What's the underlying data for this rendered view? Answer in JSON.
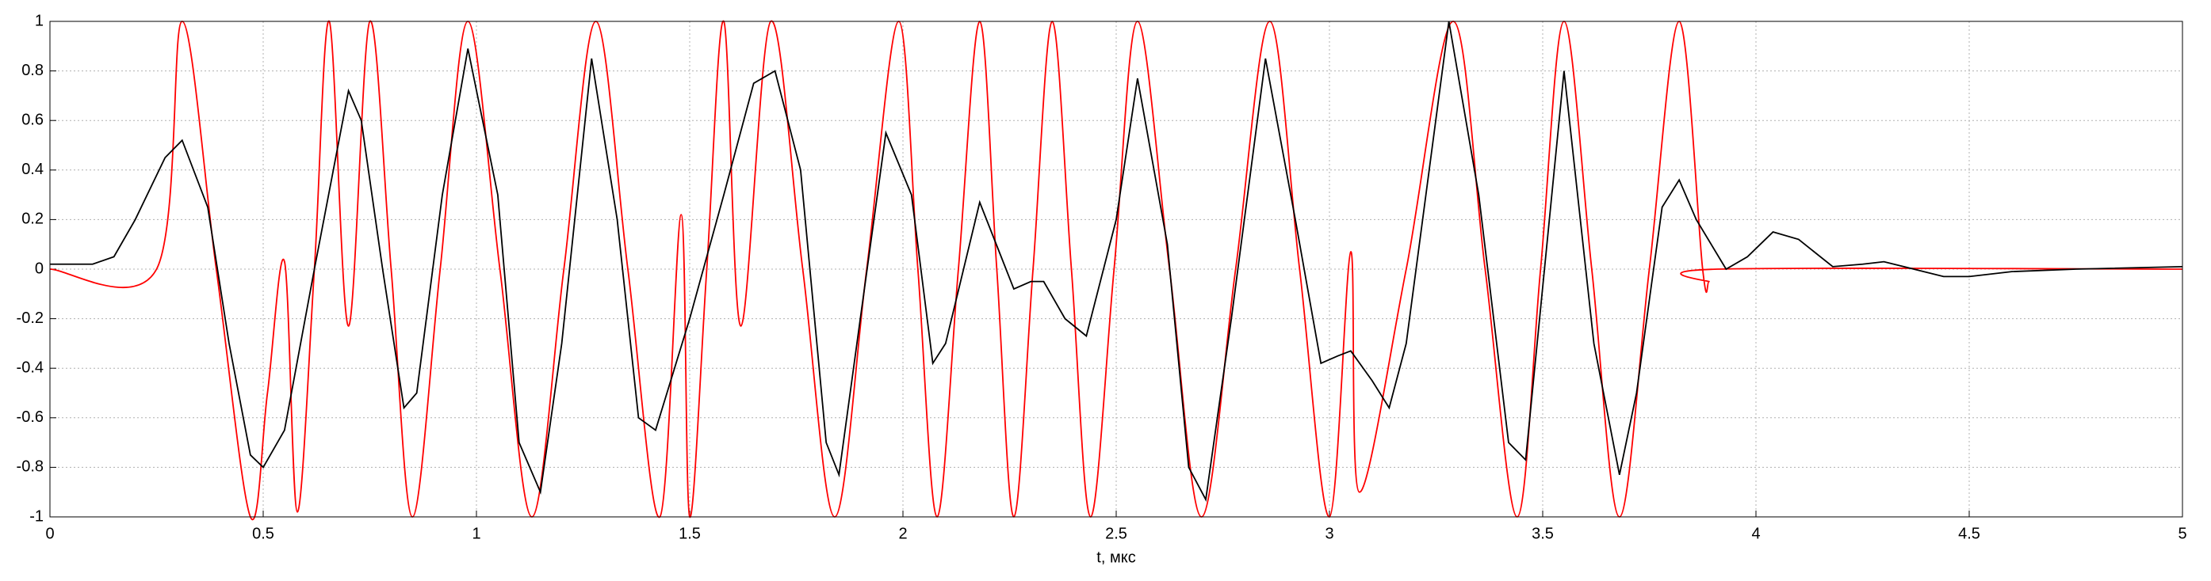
{
  "chart_data": {
    "type": "line",
    "xlabel": "t, мкс",
    "xlim": [
      0,
      5
    ],
    "ylim": [
      -1,
      1
    ],
    "xticks": [
      0,
      0.5,
      1,
      1.5,
      2,
      2.5,
      3,
      3.5,
      4,
      4.5,
      5
    ],
    "yticks": [
      -1,
      -0.8,
      -0.6,
      -0.4,
      -0.2,
      0,
      0.2,
      0.4,
      0.6,
      0.8,
      1
    ],
    "grid": true,
    "series": [
      {
        "color": "#ff0000",
        "smooth": true,
        "x": [
          0,
          0.25,
          0.31,
          0.39,
          0.47,
          0.51,
          0.55,
          0.58,
          0.62,
          0.655,
          0.7,
          0.75,
          0.8,
          0.85,
          0.915,
          0.98,
          1.055,
          1.13,
          1.205,
          1.28,
          1.355,
          1.43,
          1.48,
          1.5,
          1.54,
          1.58,
          1.62,
          1.69,
          1.765,
          1.84,
          1.915,
          1.99,
          2.035,
          2.08,
          2.13,
          2.18,
          2.22,
          2.26,
          2.305,
          2.35,
          2.395,
          2.44,
          2.495,
          2.55,
          2.625,
          2.7,
          2.78,
          2.86,
          2.93,
          3.0,
          3.05,
          3.07,
          3.18,
          3.29,
          3.365,
          3.44,
          3.495,
          3.55,
          3.615,
          3.68,
          3.75,
          3.82,
          3.875,
          3.89,
          3.91,
          5
        ],
        "values": [
          0,
          0,
          1,
          0,
          -1,
          -0.5,
          0.03,
          -0.98,
          0,
          1,
          -0.23,
          1,
          0,
          -1,
          0,
          1,
          0,
          -1,
          0,
          1,
          0,
          -1,
          0.22,
          -1,
          0,
          1,
          -0.23,
          1,
          0,
          -1,
          0,
          1,
          0,
          -1,
          0,
          1,
          0,
          -1,
          0,
          1,
          0,
          -1,
          0,
          1,
          0,
          -1,
          0,
          1,
          0,
          -1,
          0.07,
          -0.9,
          0,
          1,
          0,
          -1,
          0,
          1,
          0,
          -1,
          0,
          1,
          0,
          -0.05,
          0,
          0
        ]
      },
      {
        "color": "#000000",
        "smooth": false,
        "x": [
          0,
          0.1,
          0.15,
          0.2,
          0.27,
          0.31,
          0.37,
          0.42,
          0.47,
          0.5,
          0.55,
          0.62,
          0.7,
          0.73,
          0.78,
          0.83,
          0.86,
          0.92,
          0.98,
          1.05,
          1.1,
          1.15,
          1.2,
          1.27,
          1.33,
          1.38,
          1.42,
          1.5,
          1.58,
          1.65,
          1.7,
          1.76,
          1.82,
          1.85,
          1.9,
          1.96,
          2.02,
          2.07,
          2.1,
          2.18,
          2.26,
          2.3,
          2.33,
          2.38,
          2.43,
          2.5,
          2.55,
          2.62,
          2.67,
          2.71,
          2.77,
          2.85,
          2.92,
          2.98,
          3.02,
          3.05,
          3.1,
          3.14,
          3.18,
          3.28,
          3.35,
          3.42,
          3.46,
          3.55,
          3.62,
          3.68,
          3.72,
          3.78,
          3.82,
          3.86,
          3.93,
          3.98,
          4.04,
          4.1,
          4.18,
          4.25,
          4.3,
          4.37,
          4.44,
          4.5,
          4.6,
          4.75,
          5
        ],
        "values": [
          0.02,
          0.02,
          0.05,
          0.2,
          0.45,
          0.52,
          0.25,
          -0.3,
          -0.75,
          -0.8,
          -0.65,
          0,
          0.72,
          0.6,
          0,
          -0.56,
          -0.5,
          0.3,
          0.89,
          0.3,
          -0.7,
          -0.9,
          -0.3,
          0.85,
          0.2,
          -0.6,
          -0.65,
          -0.2,
          0.3,
          0.75,
          0.8,
          0.4,
          -0.7,
          -0.83,
          -0.2,
          0.55,
          0.3,
          -0.38,
          -0.3,
          0.27,
          -0.08,
          -0.05,
          -0.05,
          -0.2,
          -0.27,
          0.2,
          0.77,
          0.1,
          -0.8,
          -0.93,
          -0.2,
          0.85,
          0.2,
          -0.38,
          -0.35,
          -0.33,
          -0.45,
          -0.56,
          -0.3,
          1,
          0.3,
          -0.7,
          -0.77,
          0.8,
          -0.3,
          -0.83,
          -0.5,
          0.25,
          0.36,
          0.2,
          0,
          0.05,
          0.15,
          0.12,
          0.01,
          0.02,
          0.03,
          0,
          -0.03,
          -0.03,
          -0.01,
          0,
          0.01
        ]
      }
    ]
  }
}
